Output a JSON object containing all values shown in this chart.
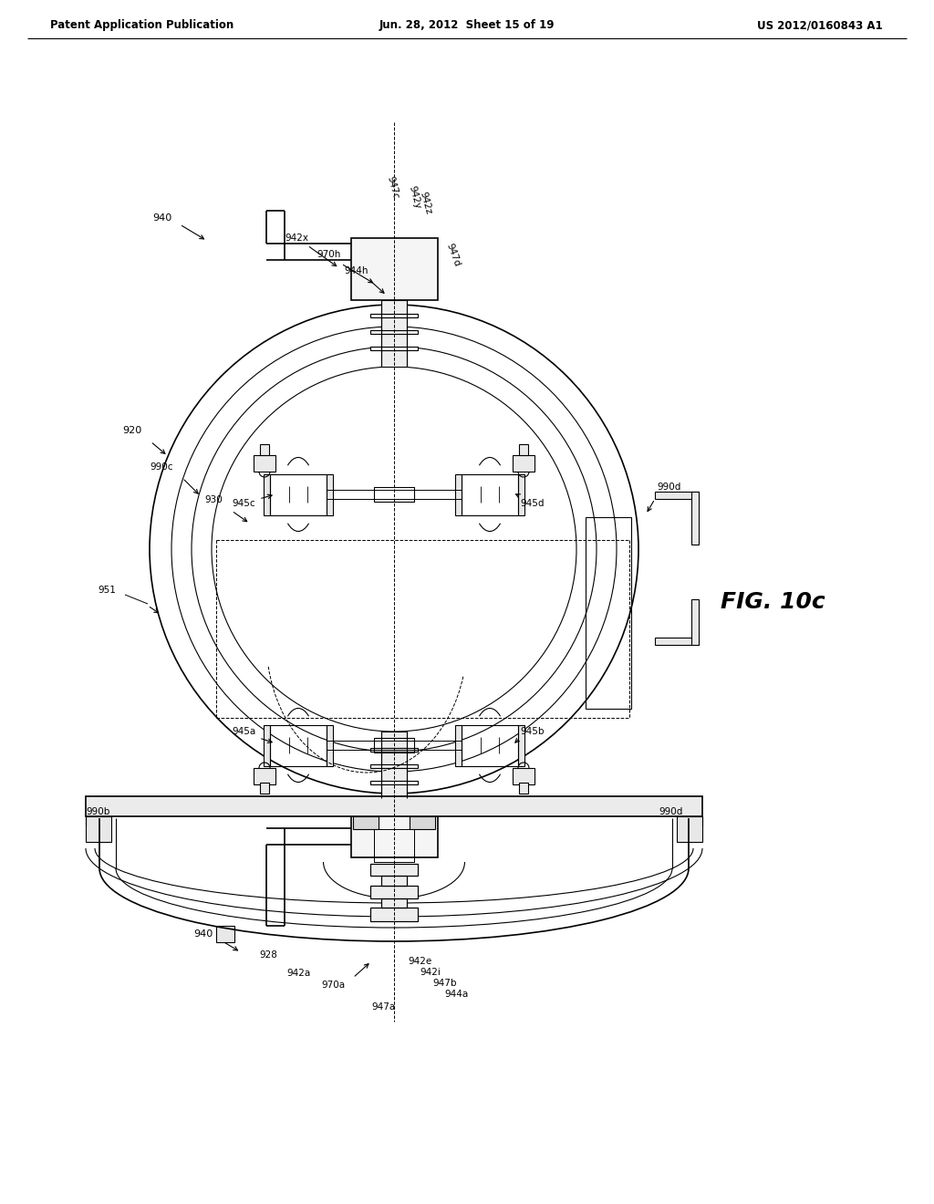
{
  "bg_color": "#ffffff",
  "header_left": "Patent Application Publication",
  "header_center": "Jun. 28, 2012  Sheet 15 of 19",
  "header_right": "US 2012/0160843 A1",
  "fig_label": "FIG. 10c"
}
